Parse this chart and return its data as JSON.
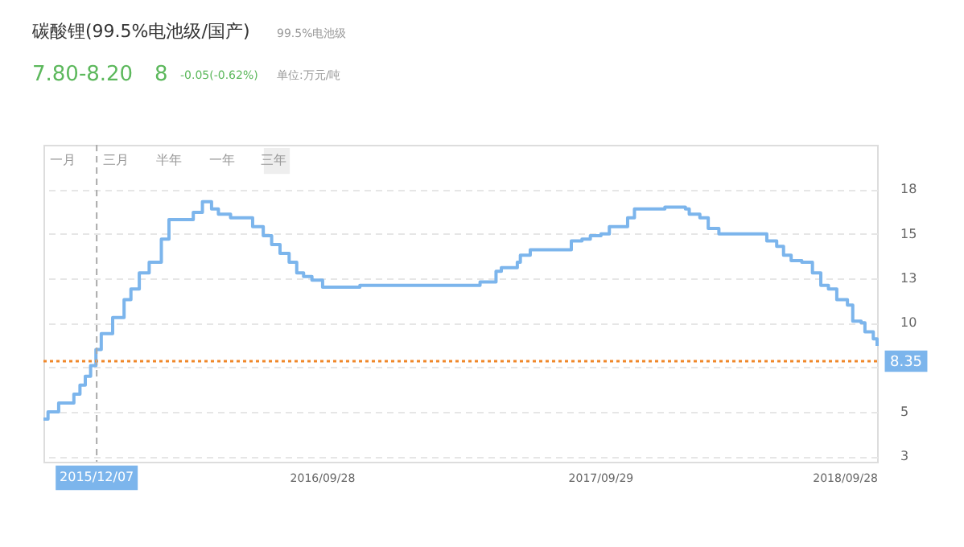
{
  "chart_data": {
    "type": "step",
    "title": "碳酸锂(99.5%电池级/国产)",
    "subtitle": "99.5%电池级",
    "annotations": [
      "7.80-8.20",
      "8",
      "-0.05(-0.62%)",
      "单位:万元/吨",
      "一月",
      "三月",
      "半年",
      "一年",
      "三年"
    ],
    "x": [
      "2015-09-28",
      "2015-10-04",
      "2015-10-18",
      "2015-11-07",
      "2015-11-15",
      "2015-11-22",
      "2015-11-29",
      "2015-12-06",
      "2015-12-13",
      "2015-12-28",
      "2016-01-12",
      "2016-01-21",
      "2016-02-01",
      "2016-02-14",
      "2016-03-01",
      "2016-03-11",
      "2016-04-12",
      "2016-04-24",
      "2016-05-06",
      "2016-05-15",
      "2016-05-31",
      "2016-06-29",
      "2016-07-13",
      "2016-07-24",
      "2016-08-04",
      "2016-08-16",
      "2016-08-26",
      "2016-09-04",
      "2016-09-15",
      "2016-09-29",
      "2016-11-17",
      "2017-04-24",
      "2017-05-15",
      "2017-05-22",
      "2017-06-12",
      "2017-06-16",
      "2017-06-29",
      "2017-08-18",
      "2017-08-22",
      "2017-09-05",
      "2017-09-16",
      "2017-09-30",
      "2017-10-11",
      "2017-10-28",
      "2017-11-04",
      "2017-11-13",
      "2017-12-23",
      "2018-01-19",
      "2018-01-24",
      "2018-02-07",
      "2018-02-18",
      "2018-03-04",
      "2018-04-29",
      "2018-05-06",
      "2018-05-19",
      "2018-05-28",
      "2018-06-07",
      "2018-06-21",
      "2018-07-05",
      "2018-07-16",
      "2018-07-26",
      "2018-08-06",
      "2018-08-20",
      "2018-08-27",
      "2018-09-07",
      "2018-09-12",
      "2018-09-23",
      "2018-09-28"
    ],
    "series": [
      {
        "color": "#7cb5ec",
        "values": [
          5.1,
          5.5,
          6.0,
          6.5,
          7.0,
          7.5,
          8.1,
          9.0,
          9.9,
          10.8,
          11.8,
          12.4,
          13.3,
          13.9,
          15.2,
          16.3,
          16.7,
          17.3,
          16.9,
          16.6,
          16.4,
          15.9,
          15.4,
          14.9,
          14.4,
          13.9,
          13.3,
          13.1,
          12.9,
          12.5,
          12.6,
          12.8,
          13.4,
          13.6,
          13.9,
          14.3,
          14.6,
          14.6,
          15.1,
          15.2,
          15.4,
          15.5,
          15.9,
          15.9,
          16.4,
          16.9,
          17.0,
          16.9,
          16.6,
          16.4,
          15.8,
          15.5,
          15.5,
          15.1,
          14.8,
          14.3,
          14.0,
          13.9,
          13.3,
          12.6,
          12.4,
          11.8,
          11.5,
          10.6,
          10.5,
          10.0,
          9.6,
          9.2
        ]
      }
    ],
    "xlim": [
      "2015-09-28",
      "2018-09-28"
    ],
    "xticks": [
      {
        "value": "2016-09-28",
        "label": "2016/09/28"
      },
      {
        "value": "2017-09-29",
        "label": "2017/09/29"
      },
      {
        "value": "2018-09-28",
        "label": "2018/09/28"
      }
    ],
    "ylim": [
      2.7,
      20.5
    ],
    "yticks": [
      3,
      {
        "value": 5.5,
        "label": "5"
      },
      {
        "value": 8,
        "label": null
      },
      {
        "value": 10.5,
        "label": "10"
      },
      13,
      {
        "value": 15.5,
        "label": "15"
      },
      18
    ],
    "grid": "y",
    "ref_lines": [
      {
        "axis": "y",
        "value": 8.35,
        "label": "8.35",
        "color": "#f0882a",
        "line_style": "dotted"
      },
      {
        "axis": "x",
        "value": "2015-12-07",
        "label": "2015/12/07",
        "color": "#aaaaaa",
        "line_style": "dashed"
      }
    ]
  }
}
